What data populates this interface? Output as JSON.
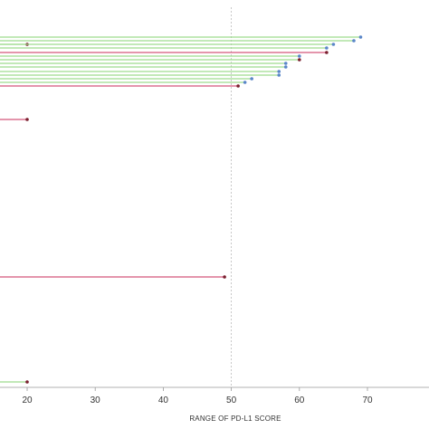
{
  "chart_data": {
    "type": "bar",
    "orientation": "horizontal-lollipop",
    "xlabel": "RANGE OF PD-L1 SCORE",
    "xticks": [
      20,
      30,
      40,
      50,
      60,
      70
    ],
    "xlim": [
      15,
      78
    ],
    "grid": false,
    "reference_line": 50,
    "colors": {
      "green": "#9edc8e",
      "pink": "#d4567a",
      "dot_blue": "#5a86c8",
      "dot_dark": "#7a1f2e",
      "axis": "#999999",
      "reference": "#bbbbbb"
    },
    "series": [
      {
        "x": 69,
        "row": 41,
        "color": "green",
        "dot": "dot_blue"
      },
      {
        "x": 68,
        "row": 45,
        "color": "green",
        "dot": "dot_blue"
      },
      {
        "x": 20,
        "row": 49,
        "color": "green",
        "dot": "dot_dark"
      },
      {
        "x": 65,
        "row": 49,
        "color": "green",
        "dot": "dot_blue"
      },
      {
        "x": 64,
        "row": 53,
        "color": "green",
        "dot": "dot_blue"
      },
      {
        "x": 64,
        "row": 58,
        "color": "pink",
        "dot": "dot_dark"
      },
      {
        "x": 60,
        "row": 62,
        "color": "green",
        "dot": "dot_blue"
      },
      {
        "x": 60,
        "row": 66,
        "color": "green",
        "dot": "dot_dark"
      },
      {
        "x": 58,
        "row": 70,
        "color": "green",
        "dot": "dot_blue"
      },
      {
        "x": 58,
        "row": 74,
        "color": "green",
        "dot": "dot_blue"
      },
      {
        "x": 57,
        "row": 79,
        "color": "green",
        "dot": "dot_blue"
      },
      {
        "x": 57,
        "row": 83,
        "color": "green",
        "dot": "dot_blue"
      },
      {
        "x": 53,
        "row": 87,
        "color": "green",
        "dot": "dot_blue"
      },
      {
        "x": 52,
        "row": 91,
        "color": "green",
        "dot": "dot_blue"
      },
      {
        "x": 51,
        "row": 95,
        "color": "pink",
        "dot": "dot_dark"
      },
      {
        "x": 20,
        "row": 132,
        "color": "pink",
        "dot": "dot_dark"
      },
      {
        "x": 49,
        "row": 306,
        "color": "pink",
        "dot": "dot_dark"
      },
      {
        "x": 20,
        "row": 422,
        "color": "green",
        "dot": "dot_dark"
      }
    ]
  }
}
